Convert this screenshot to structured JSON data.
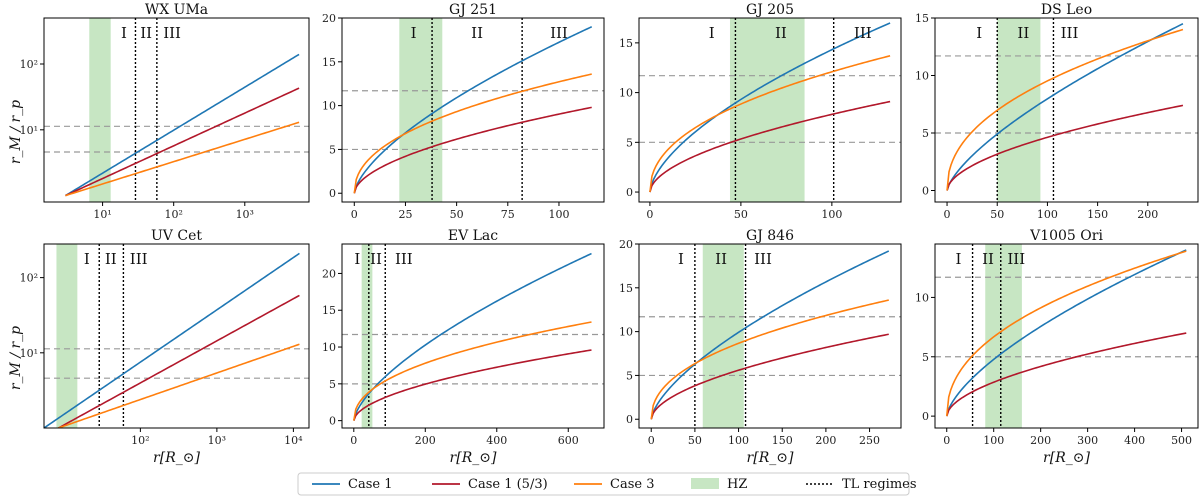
{
  "figure": {
    "ylabel": "r_M / r_p",
    "xlabel": "r[R_⊙]",
    "colors": {
      "case1": "#1f77b4",
      "case1_53": "#b2182b",
      "case3": "#ff7f0e",
      "hz": "#c7e6c3",
      "ref_lines": "#999999",
      "tl_lines": "#000000"
    }
  },
  "legend": [
    {
      "key": "case1",
      "label": "Case 1",
      "kind": "line"
    },
    {
      "key": "case1_53",
      "label": "Case 1 (5/3)",
      "kind": "line"
    },
    {
      "key": "case3",
      "label": "Case 3",
      "kind": "line"
    },
    {
      "key": "hz",
      "label": "HZ",
      "kind": "patch"
    },
    {
      "key": "tl",
      "label": "TL regimes",
      "kind": "dotted"
    }
  ],
  "chart_data": [
    {
      "type": "line",
      "title": "WX UMa",
      "scale": "log",
      "xlim": [
        1.5,
        8000
      ],
      "ylim": [
        0.8,
        500
      ],
      "xticks": [
        {
          "v": 10,
          "t": "10¹"
        },
        {
          "v": 100,
          "t": "10²"
        },
        {
          "v": 1000,
          "t": "10³"
        }
      ],
      "yticks": [
        {
          "v": 10,
          "t": "10¹"
        },
        {
          "v": 100,
          "t": "10²"
        }
      ],
      "hz": [
        6.5,
        13
      ],
      "tl": [
        29,
        58
      ],
      "hlines": [
        4.6,
        11.3
      ],
      "regimes": [
        {
          "t": "I",
          "x": 20
        },
        {
          "t": "II",
          "x": 41
        },
        {
          "t": "III",
          "x": 95
        }
      ],
      "series": [
        {
          "key": "case1",
          "x0": 3.0,
          "x1": 5800,
          "y0": 1.0,
          "y1": 140
        },
        {
          "key": "case1_53",
          "x0": 3.0,
          "x1": 5800,
          "y0": 1.0,
          "y1": 43
        },
        {
          "key": "case3",
          "x0": 3.0,
          "x1": 5800,
          "y0": 1.0,
          "y1": 13
        }
      ]
    },
    {
      "type": "line",
      "title": "GJ 251",
      "scale": "linear",
      "xlim": [
        -6,
        122
      ],
      "ylim": [
        -1,
        20
      ],
      "xticks": [
        0,
        25,
        50,
        75,
        100
      ],
      "yticks": [
        0,
        5,
        10,
        15,
        20
      ],
      "hz": [
        22,
        43
      ],
      "tl": [
        38,
        82
      ],
      "hlines": [
        5,
        11.7
      ],
      "regimes": [
        {
          "t": "I",
          "x": 29
        },
        {
          "t": "II",
          "x": 60
        },
        {
          "t": "III",
          "x": 100
        }
      ],
      "series": [
        {
          "key": "case1",
          "x1": 116,
          "y1": 19.0,
          "p": 0.66
        },
        {
          "key": "case1_53",
          "x1": 116,
          "y1": 9.8,
          "p": 0.55
        },
        {
          "key": "case3",
          "x1": 116,
          "y1": 13.6,
          "p": 0.45
        }
      ]
    },
    {
      "type": "line",
      "title": "GJ 205",
      "scale": "linear",
      "xlim": [
        -6,
        138
      ],
      "ylim": [
        -1,
        17.5
      ],
      "xticks": [
        0,
        50,
        100
      ],
      "yticks": [
        0,
        5,
        10,
        15
      ],
      "hz": [
        44,
        85
      ],
      "tl": [
        47,
        101
      ],
      "hlines": [
        5,
        11.7
      ],
      "regimes": [
        {
          "t": "I",
          "x": 34
        },
        {
          "t": "II",
          "x": 72
        },
        {
          "t": "III",
          "x": 117
        }
      ],
      "series": [
        {
          "key": "case1",
          "x1": 132,
          "y1": 17.0,
          "p": 0.62
        },
        {
          "key": "case1_53",
          "x1": 132,
          "y1": 9.1,
          "p": 0.55
        },
        {
          "key": "case3",
          "x1": 132,
          "y1": 13.7,
          "p": 0.45
        }
      ]
    },
    {
      "type": "line",
      "title": "DS Leo",
      "scale": "linear",
      "xlim": [
        -12,
        250
      ],
      "ylim": [
        -1,
        15
      ],
      "xticks": [
        0,
        50,
        100,
        150,
        200
      ],
      "yticks": [
        0,
        5,
        10,
        15
      ],
      "hz": [
        50,
        93
      ],
      "tl": [
        50,
        106
      ],
      "hlines": [
        5,
        11.7
      ],
      "regimes": [
        {
          "t": "I",
          "x": 32
        },
        {
          "t": "II",
          "x": 76
        },
        {
          "t": "III",
          "x": 122
        }
      ],
      "series": [
        {
          "key": "case1",
          "x1": 235,
          "y1": 14.5,
          "p": 0.7
        },
        {
          "key": "case1_53",
          "x1": 235,
          "y1": 7.4,
          "p": 0.55
        },
        {
          "key": "case3",
          "x1": 235,
          "y1": 14.0,
          "p": 0.45
        }
      ]
    },
    {
      "type": "line",
      "title": "UV Cet",
      "scale": "log",
      "xlim": [
        5.5,
        16000
      ],
      "ylim": [
        1.0,
        280
      ],
      "xticks": [
        {
          "v": 100,
          "t": "10²"
        },
        {
          "v": 1000,
          "t": "10³"
        },
        {
          "v": 10000,
          "t": "10⁴"
        }
      ],
      "yticks": [
        {
          "v": 10,
          "t": "10¹"
        },
        {
          "v": 100,
          "t": "10²"
        }
      ],
      "hz": [
        8,
        15
      ],
      "tl": [
        29,
        60
      ],
      "hlines": [
        4.6,
        11.3
      ],
      "regimes": [
        {
          "t": "I",
          "x": 20
        },
        {
          "t": "II",
          "x": 41
        },
        {
          "t": "III",
          "x": 95
        }
      ],
      "series": [
        {
          "key": "case1",
          "x0": 5.5,
          "x1": 12000,
          "y0": 1.0,
          "y1": 210
        },
        {
          "key": "case1_53",
          "x0": 8.5,
          "x1": 12000,
          "y0": 1.0,
          "y1": 58
        },
        {
          "key": "case3",
          "x0": 8.5,
          "x1": 12000,
          "y0": 1.0,
          "y1": 13
        }
      ]
    },
    {
      "type": "line",
      "title": "EV Lac",
      "scale": "linear",
      "xlim": [
        -33,
        700
      ],
      "ylim": [
        -1,
        24
      ],
      "xticks": [
        0,
        200,
        400,
        600
      ],
      "yticks": [
        0,
        5,
        10,
        15,
        20
      ],
      "hz": [
        22,
        52
      ],
      "tl": [
        42,
        88
      ],
      "hlines": [
        5,
        11.7
      ],
      "regimes": [
        {
          "t": "I",
          "x": 10
        },
        {
          "t": "II",
          "x": 62
        },
        {
          "t": "III",
          "x": 140
        }
      ],
      "series": [
        {
          "key": "case1",
          "x1": 665,
          "y1": 22.7,
          "p": 0.66
        },
        {
          "key": "case1_53",
          "x1": 665,
          "y1": 9.6,
          "p": 0.55
        },
        {
          "key": "case3",
          "x1": 665,
          "y1": 13.4,
          "p": 0.45
        }
      ]
    },
    {
      "type": "line",
      "title": "GJ 846",
      "scale": "linear",
      "xlim": [
        -14,
        286
      ],
      "ylim": [
        -1,
        20
      ],
      "xticks": [
        0,
        50,
        100,
        150,
        200,
        250
      ],
      "yticks": [
        0,
        5,
        10,
        15,
        20
      ],
      "hz": [
        59,
        106
      ],
      "tl": [
        50,
        108
      ],
      "hlines": [
        5,
        11.7
      ],
      "regimes": [
        {
          "t": "I",
          "x": 34
        },
        {
          "t": "II",
          "x": 80
        },
        {
          "t": "III",
          "x": 128
        }
      ],
      "series": [
        {
          "key": "case1",
          "x1": 272,
          "y1": 19.2,
          "p": 0.66
        },
        {
          "key": "case1_53",
          "x1": 272,
          "y1": 9.7,
          "p": 0.55
        },
        {
          "key": "case3",
          "x1": 272,
          "y1": 13.6,
          "p": 0.45
        }
      ]
    },
    {
      "type": "line",
      "title": "V1005 Ori",
      "scale": "linear",
      "xlim": [
        -25,
        535
      ],
      "ylim": [
        -1,
        14.5
      ],
      "xticks": [
        0,
        100,
        200,
        300,
        400,
        500
      ],
      "yticks": [
        0,
        5,
        10
      ],
      "hz": [
        82,
        160
      ],
      "tl": [
        55,
        115
      ],
      "hlines": [
        5,
        11.7
      ],
      "regimes": [
        {
          "t": "I",
          "x": 25
        },
        {
          "t": "II",
          "x": 88
        },
        {
          "t": "III",
          "x": 148
        }
      ],
      "series": [
        {
          "key": "case1",
          "x1": 510,
          "y1": 14.0,
          "p": 0.66
        },
        {
          "key": "case1_53",
          "x1": 510,
          "y1": 7.0,
          "p": 0.55
        },
        {
          "key": "case3",
          "x1": 510,
          "y1": 13.9,
          "p": 0.45
        }
      ]
    }
  ]
}
